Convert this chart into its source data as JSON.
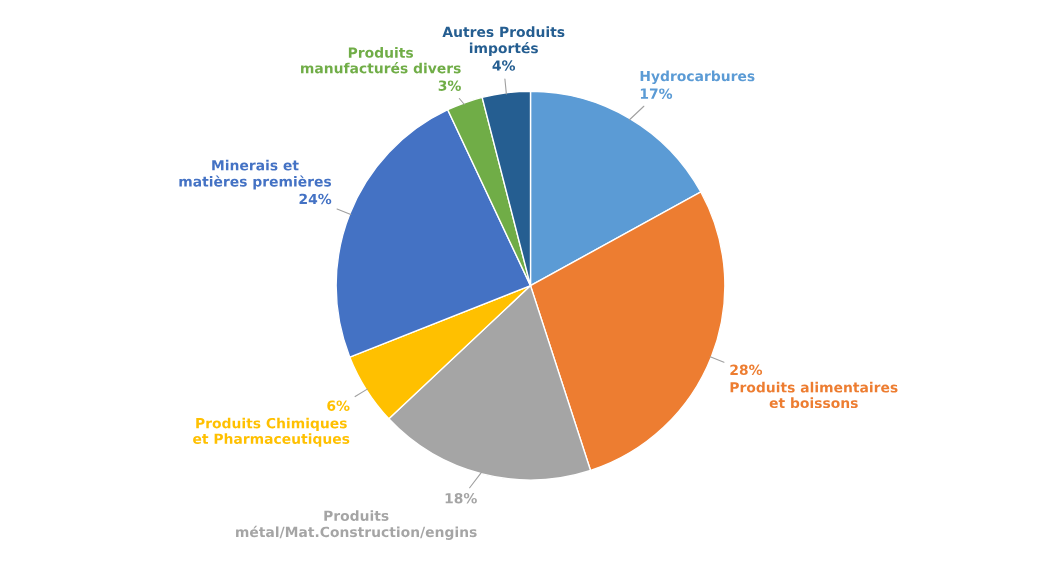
{
  "chart_data": {
    "type": "pie",
    "categories": [
      "Hydrocarbures",
      "Produits alimentaires et boissons",
      "Produits métal/Mat.Construction/engins",
      "Produits Chimiques et Pharmaceutiques",
      "Minerais et matières premières",
      "Produits manufacturés divers",
      "Autres Produits importés"
    ],
    "values": [
      17,
      28,
      18,
      6,
      24,
      3,
      4
    ],
    "colors": [
      "#5b9bd5",
      "#ed7d31",
      "#a5a5a5",
      "#ffc000",
      "#4472c4",
      "#70ad47",
      "#255e91"
    ],
    "value_labels": [
      "17%",
      "28%",
      "18%",
      "6%",
      "24%",
      "3%",
      "4%"
    ],
    "legend": false
  }
}
